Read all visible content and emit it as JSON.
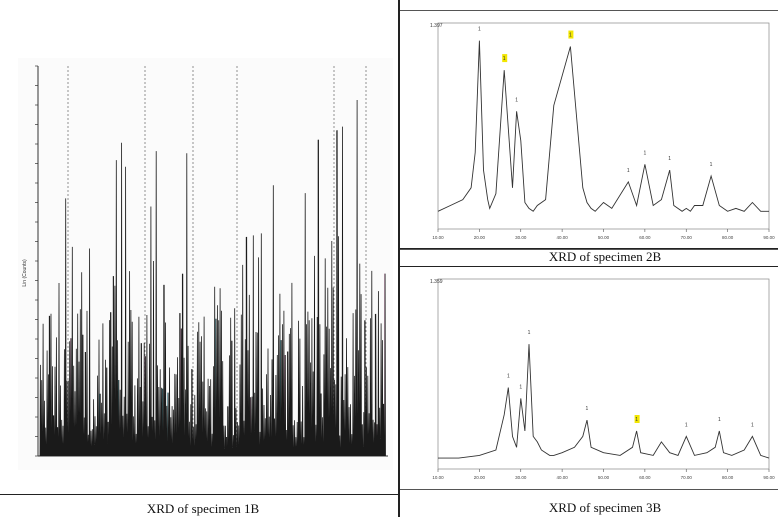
{
  "colors": {
    "ink": "#222222",
    "accent": "#4fa3b0",
    "pink": "#c58fb0",
    "label_highlight": "#f2e600"
  },
  "captions": {
    "c1": "XRD of specimen 1B",
    "c2": "XRD of specimen 2B",
    "c3": "XRD of specimen 3B"
  },
  "chart_data": [
    {
      "type": "line",
      "title": "",
      "xlabel": "",
      "ylabel": "Lin (Counts)",
      "caption": "XRD of specimen 1B",
      "grid": true,
      "notes": "dense multi-peak diffraction pattern; dotted vertical reference lines",
      "ylim": [
        0,
        100
      ],
      "peaks_relative": [
        100,
        96,
        95,
        90,
        88,
        85,
        82,
        80,
        78,
        75,
        72,
        70,
        68,
        66,
        64,
        62,
        60,
        58,
        56,
        55
      ]
    },
    {
      "type": "line",
      "title": "",
      "xlabel": "",
      "ylabel": "",
      "caption": "XRD of specimen 2B",
      "x_ticks": [
        "10.00",
        "20.00",
        "30.00",
        "40.00",
        "50.00",
        "60.00",
        "70.00",
        "80.00",
        "90.00"
      ],
      "y_top_label": "1.397",
      "series": [
        {
          "x": [
            10,
            13,
            16,
            18,
            19,
            20,
            21,
            22,
            22.5,
            24,
            26,
            28,
            29,
            30,
            31,
            32,
            33,
            34,
            36,
            38,
            42,
            45,
            46,
            47,
            48,
            50,
            52,
            56,
            58,
            60,
            62,
            64,
            66,
            67,
            69,
            70,
            71,
            72,
            74,
            76,
            78,
            80,
            82,
            84,
            86,
            88,
            90
          ],
          "y": [
            6,
            8,
            10,
            14,
            26,
            64,
            20,
            10,
            7,
            12,
            54,
            14,
            40,
            30,
            9,
            7,
            6,
            8,
            10,
            42,
            62,
            14,
            9,
            7,
            6,
            9,
            7,
            16,
            8,
            22,
            8,
            10,
            20,
            8,
            6,
            7,
            6,
            8,
            8,
            18,
            8,
            6,
            7,
            6,
            9,
            6,
            6
          ]
        }
      ],
      "peak_labels": [
        {
          "x": 20,
          "text": "1"
        },
        {
          "x": 26,
          "text": "1"
        },
        {
          "x": 29,
          "text": "1"
        },
        {
          "x": 42,
          "text": "1"
        },
        {
          "x": 56,
          "text": "1"
        },
        {
          "x": 60,
          "text": "1"
        },
        {
          "x": 66,
          "text": "1"
        },
        {
          "x": 76,
          "text": "1"
        }
      ]
    },
    {
      "type": "line",
      "title": "",
      "xlabel": "",
      "ylabel": "",
      "caption": "XRD of specimen 3B",
      "x_ticks": [
        "10.00",
        "20.00",
        "30.00",
        "40.00",
        "50.00",
        "60.00",
        "70.00",
        "80.00",
        "90.00"
      ],
      "y_top_label": "1.359",
      "series": [
        {
          "x": [
            10,
            15,
            20,
            24,
            26,
            27,
            28,
            29,
            30,
            31,
            32,
            33,
            34,
            35,
            36,
            37,
            38,
            40,
            43,
            45,
            46,
            47,
            50,
            54,
            57,
            58,
            59,
            62,
            64,
            66,
            68,
            70,
            72,
            75,
            77,
            78,
            79,
            81,
            84,
            86,
            88,
            90
          ],
          "y": [
            4,
            4,
            5,
            7,
            20,
            30,
            12,
            8,
            26,
            14,
            46,
            12,
            10,
            7,
            6,
            5,
            5,
            6,
            8,
            12,
            18,
            8,
            6,
            5,
            8,
            14,
            6,
            5,
            10,
            6,
            5,
            12,
            5,
            6,
            8,
            14,
            6,
            5,
            7,
            12,
            5,
            4
          ]
        }
      ],
      "peak_labels": [
        {
          "x": 27,
          "text": "1"
        },
        {
          "x": 30,
          "text": "1"
        },
        {
          "x": 32,
          "text": "1"
        },
        {
          "x": 46,
          "text": "1"
        },
        {
          "x": 58,
          "text": "1"
        },
        {
          "x": 70,
          "text": "1"
        },
        {
          "x": 78,
          "text": "1"
        },
        {
          "x": 86,
          "text": "1"
        }
      ]
    }
  ]
}
